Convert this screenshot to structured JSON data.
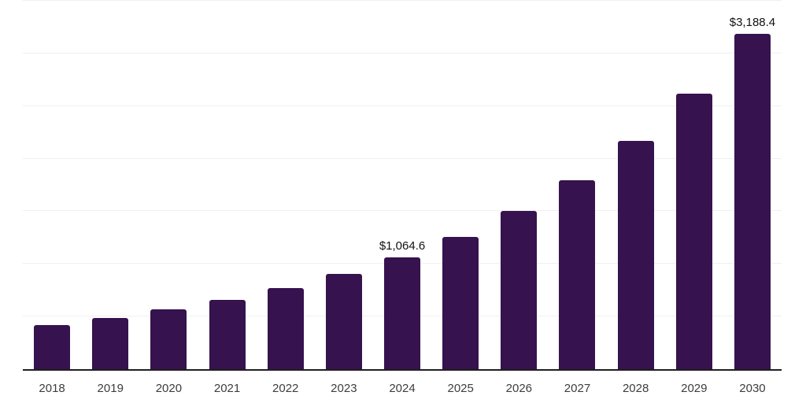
{
  "chart_data": {
    "type": "bar",
    "title": "",
    "xlabel": "",
    "ylabel": "",
    "categories": [
      "2018",
      "2019",
      "2020",
      "2021",
      "2022",
      "2023",
      "2024",
      "2025",
      "2026",
      "2027",
      "2028",
      "2029",
      "2030"
    ],
    "values": [
      417,
      484,
      565,
      660,
      772,
      905,
      1064.6,
      1260,
      1500,
      1798,
      2172,
      2620,
      3188.4
    ],
    "data_labels": {
      "2024": "$1,064.6",
      "2030": "$3,188.4"
    },
    "ylim": [
      0,
      3500
    ],
    "gridline_step": 500,
    "grid": "horizontal",
    "legend": "none",
    "y_axis_tick_labels": "none",
    "colors": {
      "bar": "#36124E",
      "gridline": "#f0f0f0",
      "axis_line": "#1f1f1f",
      "x_label_text": "#3d3d3d",
      "data_label_text": "#111111",
      "background": "#ffffff"
    }
  }
}
